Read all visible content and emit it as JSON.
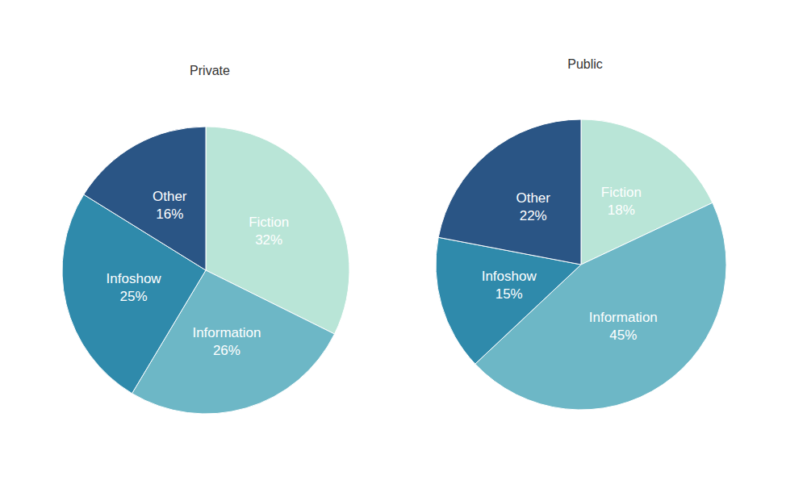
{
  "chart_data": [
    {
      "type": "pie",
      "title": "Private",
      "categories": [
        "Fiction",
        "Information",
        "Infoshow",
        "Other"
      ],
      "values": [
        32,
        26,
        25,
        16
      ],
      "value_labels": [
        "32%",
        "26%",
        "25%",
        "16%"
      ],
      "colors": [
        "#b9e5d7",
        "#6db7c6",
        "#2f8aab",
        "#2a5585"
      ],
      "data_labels": true
    },
    {
      "type": "pie",
      "title": "Public",
      "categories": [
        "Fiction",
        "Information",
        "Infoshow",
        "Other"
      ],
      "values": [
        18,
        45,
        15,
        22
      ],
      "value_labels": [
        "18%",
        "45%",
        "15%",
        "22%"
      ],
      "colors": [
        "#b9e5d7",
        "#6db7c6",
        "#2f8aab",
        "#2a5585"
      ],
      "data_labels": true
    }
  ]
}
